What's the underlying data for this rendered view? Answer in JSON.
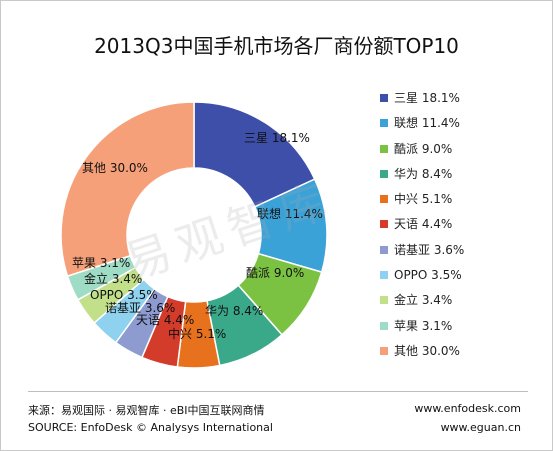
{
  "chart_data": {
    "type": "pie",
    "style": "donut",
    "title": "2013Q3中国手机市场各厂商份额TOP10",
    "unit": "%",
    "categories": [
      "三星",
      "联想",
      "酷派",
      "华为",
      "中兴",
      "天语",
      "诺基亚",
      "OPPO",
      "金立",
      "苹果",
      "其他"
    ],
    "values": [
      18.1,
      11.4,
      9.0,
      8.4,
      5.1,
      4.4,
      3.6,
      3.5,
      3.4,
      3.1,
      30.0
    ],
    "labels": [
      "三星 18.1%",
      "联想 11.4%",
      "酷派 9.0%",
      "华为 8.4%",
      "中兴 5.1%",
      "天语 4.4%",
      "诺基亚 3.6%",
      "OPPO 3.5%",
      "金立 3.4%",
      "苹果 3.1%",
      "其他 30.0%"
    ],
    "colors": [
      "#3d4fa8",
      "#3ba2d8",
      "#7cc242",
      "#3aa98a",
      "#e8711e",
      "#d33b2b",
      "#8e9bd1",
      "#8fd2ef",
      "#c2e08a",
      "#9fdcc5",
      "#f6a07a"
    ],
    "legend_position": "right",
    "grid": false
  },
  "watermark": "易观智库",
  "footer": {
    "source_cn": "来源：易观国际 · 易观智库 · eBI中国互联网商情",
    "source_en": "SOURCE: EnfoDesk © Analysys International",
    "url1": "www.enfodesk.com",
    "url2": "www.eguan.cn"
  }
}
